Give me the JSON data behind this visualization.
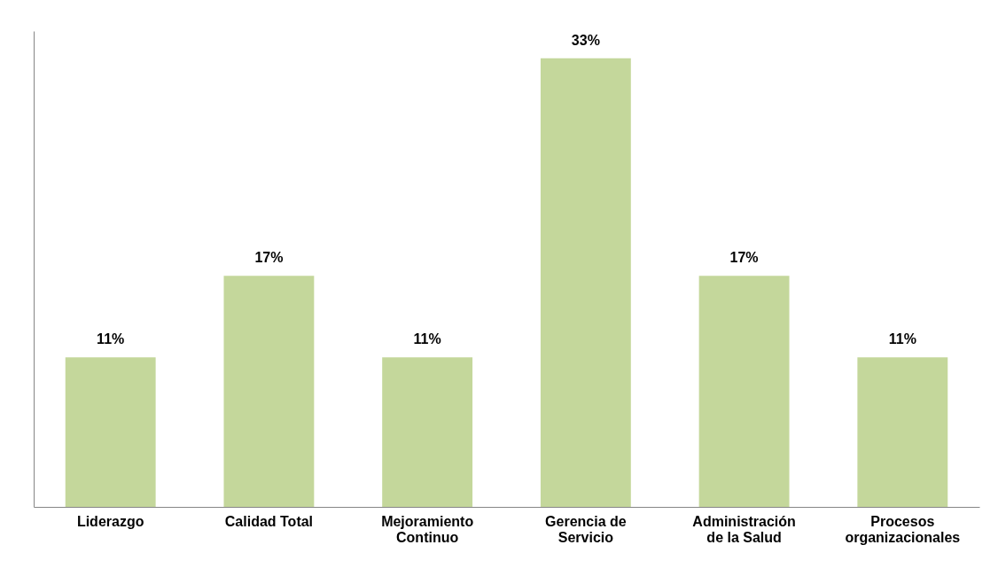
{
  "chart_data": {
    "type": "bar",
    "categories": [
      "Liderazgo",
      "Calidad Total",
      "Mejoramiento\nContinuo",
      "Gerencia de\nServicio",
      "Administración\nde la Salud",
      "Procesos\norganizacionales"
    ],
    "values": [
      11,
      17,
      11,
      33,
      17,
      11
    ],
    "value_labels": [
      "11%",
      "17%",
      "11%",
      "33%",
      "17%",
      "11%"
    ],
    "color": "#c4d79b",
    "ylim": [
      0,
      35
    ]
  }
}
